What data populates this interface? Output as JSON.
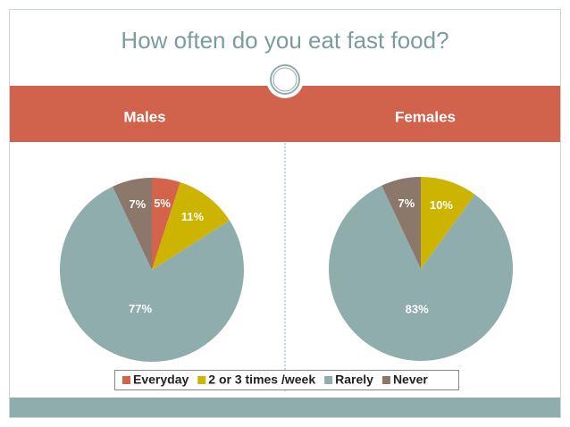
{
  "title": "How often do you eat fast food?",
  "chart_data": [
    {
      "type": "pie",
      "title": "Males",
      "categories": [
        "Everyday",
        "2 or 3 times /week",
        "Rarely",
        "Never"
      ],
      "colors": [
        "#d4634b",
        "#ccb400",
        "#8fadad",
        "#8c776b"
      ],
      "values": [
        5,
        11,
        77,
        7
      ],
      "value_labels": [
        "5%",
        "11%",
        "77%",
        "7%"
      ]
    },
    {
      "type": "pie",
      "title": "Females",
      "categories": [
        "Everyday",
        "2 or 3 times /week",
        "Rarely",
        "Never"
      ],
      "colors": [
        "#d4634b",
        "#ccb400",
        "#8fadad",
        "#8c776b"
      ],
      "values": [
        0,
        10,
        83,
        7
      ],
      "value_labels": [
        null,
        "10%",
        "83%",
        "7%"
      ]
    }
  ]
}
